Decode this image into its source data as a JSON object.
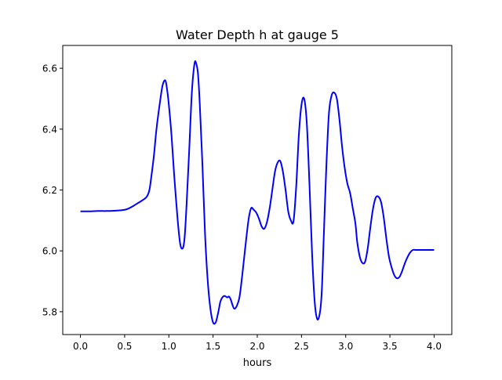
{
  "chart_data": {
    "type": "line",
    "title": "Water Depth h at gauge 5",
    "xlabel": "hours",
    "ylabel": "",
    "xlim": [
      -0.2,
      4.2
    ],
    "ylim": [
      5.725,
      6.675
    ],
    "xticks": [
      0.0,
      0.5,
      1.0,
      1.5,
      2.0,
      2.5,
      3.0,
      3.5,
      4.0
    ],
    "xtick_labels": [
      "0.0",
      "0.5",
      "1.0",
      "1.5",
      "2.0",
      "2.5",
      "3.0",
      "3.5",
      "4.0"
    ],
    "yticks": [
      5.8,
      6.0,
      6.2,
      6.4,
      6.6
    ],
    "ytick_labels": [
      "5.8",
      "6.0",
      "6.2",
      "6.4",
      "6.6"
    ],
    "grid": false,
    "series": [
      {
        "name": "",
        "color": "#0000ff",
        "x": [
          0.0,
          0.1,
          0.2,
          0.3,
          0.4,
          0.5,
          0.55,
          0.6,
          0.65,
          0.7,
          0.75,
          0.78,
          0.8,
          0.83,
          0.86,
          0.9,
          0.93,
          0.96,
          0.98,
          1.0,
          1.03,
          1.06,
          1.1,
          1.13,
          1.16,
          1.18,
          1.2,
          1.23,
          1.26,
          1.29,
          1.31,
          1.33,
          1.35,
          1.38,
          1.41,
          1.44,
          1.47,
          1.5,
          1.53,
          1.56,
          1.58,
          1.6,
          1.63,
          1.66,
          1.68,
          1.7,
          1.72,
          1.74,
          1.77,
          1.8,
          1.83,
          1.86,
          1.9,
          1.93,
          1.96,
          1.99,
          2.02,
          2.05,
          2.08,
          2.11,
          2.14,
          2.17,
          2.2,
          2.23,
          2.26,
          2.29,
          2.32,
          2.35,
          2.38,
          2.41,
          2.44,
          2.47,
          2.5,
          2.53,
          2.56,
          2.59,
          2.62,
          2.65,
          2.68,
          2.71,
          2.73,
          2.75,
          2.78,
          2.81,
          2.84,
          2.87,
          2.9,
          2.93,
          2.96,
          2.99,
          3.02,
          3.05,
          3.08,
          3.11,
          3.13,
          3.16,
          3.19,
          3.22,
          3.25,
          3.28,
          3.31,
          3.34,
          3.37,
          3.4,
          3.43,
          3.46,
          3.49,
          3.52,
          3.55,
          3.58,
          3.61,
          3.64,
          3.67,
          3.7,
          3.73,
          3.76,
          3.79,
          3.82,
          3.85,
          3.88,
          3.91,
          3.94,
          3.97,
          4.0
        ],
        "y": [
          6.13,
          6.13,
          6.131,
          6.131,
          6.132,
          6.135,
          6.14,
          6.148,
          6.157,
          6.166,
          6.178,
          6.2,
          6.24,
          6.31,
          6.4,
          6.49,
          6.545,
          6.56,
          6.53,
          6.48,
          6.38,
          6.25,
          6.1,
          6.02,
          6.01,
          6.05,
          6.15,
          6.33,
          6.52,
          6.615,
          6.615,
          6.58,
          6.48,
          6.28,
          6.05,
          5.9,
          5.81,
          5.765,
          5.765,
          5.8,
          5.83,
          5.845,
          5.852,
          5.847,
          5.85,
          5.84,
          5.822,
          5.81,
          5.82,
          5.85,
          5.92,
          6.0,
          6.1,
          6.14,
          6.135,
          6.125,
          6.105,
          6.08,
          6.073,
          6.095,
          6.14,
          6.2,
          6.26,
          6.29,
          6.295,
          6.26,
          6.2,
          6.13,
          6.1,
          6.098,
          6.21,
          6.38,
          6.48,
          6.5,
          6.42,
          6.22,
          5.99,
          5.83,
          5.775,
          5.8,
          5.87,
          6.03,
          6.27,
          6.45,
          6.51,
          6.52,
          6.5,
          6.43,
          6.34,
          6.27,
          6.22,
          6.19,
          6.14,
          6.09,
          6.03,
          5.98,
          5.96,
          5.965,
          6.01,
          6.08,
          6.14,
          6.175,
          6.178,
          6.16,
          6.11,
          6.04,
          5.98,
          5.945,
          5.92,
          5.91,
          5.915,
          5.935,
          5.96,
          5.98,
          5.995,
          6.003,
          6.003,
          6.003,
          6.003,
          6.003,
          6.003,
          6.003,
          6.003,
          6.003
        ]
      }
    ]
  }
}
